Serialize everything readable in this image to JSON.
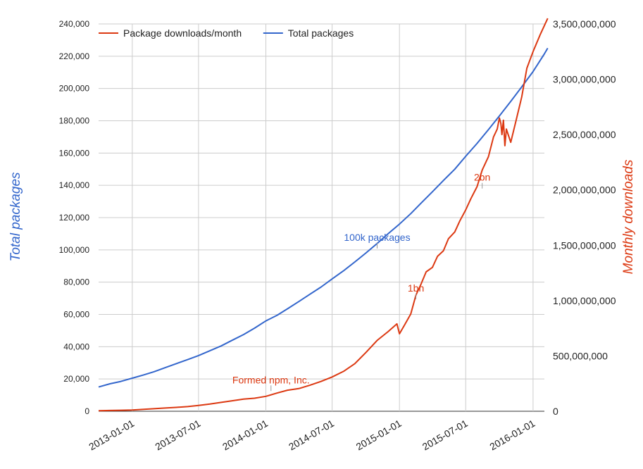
{
  "chart_data": {
    "type": "line",
    "legend": {
      "position": "top-left",
      "items": [
        {
          "label": "Package downloads/month",
          "color": "#dc3912"
        },
        {
          "label": "Total packages",
          "color": "#3366cc"
        }
      ]
    },
    "y_left": {
      "label": "Total packages",
      "color": "#3366cc",
      "range": [
        0,
        240000
      ],
      "ticks": [
        {
          "value": 0,
          "label": "0"
        },
        {
          "value": 20000,
          "label": "20,000"
        },
        {
          "value": 40000,
          "label": "40,000"
        },
        {
          "value": 60000,
          "label": "60,000"
        },
        {
          "value": 80000,
          "label": "80,000"
        },
        {
          "value": 100000,
          "label": "100,000"
        },
        {
          "value": 120000,
          "label": "120,000"
        },
        {
          "value": 140000,
          "label": "140,000"
        },
        {
          "value": 160000,
          "label": "160,000"
        },
        {
          "value": 180000,
          "label": "180,000"
        },
        {
          "value": 200000,
          "label": "200,000"
        },
        {
          "value": 220000,
          "label": "220,000"
        },
        {
          "value": 240000,
          "label": "240,000"
        }
      ]
    },
    "y_right": {
      "label": "Monthly downloads",
      "color": "#dc3912",
      "range": [
        0,
        3500000000
      ],
      "ticks": [
        {
          "value": 0,
          "label": "0"
        },
        {
          "value": 500000000,
          "label": "500,000,000"
        },
        {
          "value": 1000000000,
          "label": "1,000,000,000"
        },
        {
          "value": 1500000000,
          "label": "1,500,000,000"
        },
        {
          "value": 2000000000,
          "label": "2,000,000,000"
        },
        {
          "value": 2500000000,
          "label": "2,500,000,000"
        },
        {
          "value": 3000000000,
          "label": "3,000,000,000"
        },
        {
          "value": 3500000000,
          "label": "3,500,000,000"
        }
      ]
    },
    "x_axis": {
      "range": [
        "2012-10-01",
        "2016-02-01"
      ],
      "ticks": [
        {
          "value": "2013-01-01",
          "label": "2013-01-01"
        },
        {
          "value": "2013-07-01",
          "label": "2013-07-01"
        },
        {
          "value": "2014-01-01",
          "label": "2014-01-01"
        },
        {
          "value": "2014-07-01",
          "label": "2014-07-01"
        },
        {
          "value": "2015-01-01",
          "label": "2015-01-01"
        },
        {
          "value": "2015-07-01",
          "label": "2015-07-01"
        },
        {
          "value": "2016-01-01",
          "label": "2016-01-01"
        }
      ]
    },
    "grid": true,
    "series": [
      {
        "name": "Total packages",
        "axis": "left",
        "color": "#3366cc",
        "points": [
          [
            "2012-10-01",
            15000
          ],
          [
            "2012-11-01",
            17000
          ],
          [
            "2012-12-01",
            18500
          ],
          [
            "2013-01-01",
            20500
          ],
          [
            "2013-02-01",
            22500
          ],
          [
            "2013-03-01",
            24500
          ],
          [
            "2013-04-01",
            27000
          ],
          [
            "2013-05-01",
            29500
          ],
          [
            "2013-06-01",
            32000
          ],
          [
            "2013-07-01",
            34500
          ],
          [
            "2013-08-01",
            37500
          ],
          [
            "2013-09-01",
            40500
          ],
          [
            "2013-10-01",
            44000
          ],
          [
            "2013-11-01",
            47500
          ],
          [
            "2013-12-01",
            51500
          ],
          [
            "2014-01-01",
            56000
          ],
          [
            "2014-02-01",
            59500
          ],
          [
            "2014-03-01",
            63500
          ],
          [
            "2014-04-01",
            68000
          ],
          [
            "2014-05-01",
            72500
          ],
          [
            "2014-06-01",
            77000
          ],
          [
            "2014-07-01",
            82000
          ],
          [
            "2014-08-01",
            87000
          ],
          [
            "2014-09-01",
            92500
          ],
          [
            "2014-10-01",
            98000
          ],
          [
            "2014-11-01",
            104000
          ],
          [
            "2014-12-01",
            110000
          ],
          [
            "2015-01-01",
            116000
          ],
          [
            "2015-02-01",
            122500
          ],
          [
            "2015-03-01",
            129000
          ],
          [
            "2015-04-01",
            136000
          ],
          [
            "2015-05-01",
            143000
          ],
          [
            "2015-06-01",
            150000
          ],
          [
            "2015-07-01",
            158000
          ],
          [
            "2015-08-01",
            166000
          ],
          [
            "2015-09-01",
            174500
          ],
          [
            "2015-10-01",
            183000
          ],
          [
            "2015-11-01",
            192000
          ],
          [
            "2015-12-01",
            201000
          ],
          [
            "2016-01-01",
            210500
          ],
          [
            "2016-02-01",
            221500
          ],
          [
            "2016-02-10",
            225000
          ]
        ]
      },
      {
        "name": "Package downloads/month",
        "axis": "right",
        "color": "#dc3912",
        "points": [
          [
            "2012-10-01",
            5000000
          ],
          [
            "2012-11-01",
            7000000
          ],
          [
            "2012-12-01",
            9000000
          ],
          [
            "2013-01-01",
            11000000
          ],
          [
            "2013-02-01",
            17000000
          ],
          [
            "2013-03-01",
            23000000
          ],
          [
            "2013-04-01",
            29000000
          ],
          [
            "2013-05-01",
            35000000
          ],
          [
            "2013-06-01",
            42000000
          ],
          [
            "2013-07-01",
            52000000
          ],
          [
            "2013-08-01",
            65000000
          ],
          [
            "2013-09-01",
            80000000
          ],
          [
            "2013-10-01",
            95000000
          ],
          [
            "2013-11-01",
            110000000
          ],
          [
            "2013-12-01",
            118000000
          ],
          [
            "2014-01-01",
            135000000
          ],
          [
            "2014-02-01",
            165000000
          ],
          [
            "2014-03-01",
            190000000
          ],
          [
            "2014-04-01",
            205000000
          ],
          [
            "2014-05-01",
            235000000
          ],
          [
            "2014-06-01",
            270000000
          ],
          [
            "2014-07-01",
            310000000
          ],
          [
            "2014-08-01",
            360000000
          ],
          [
            "2014-09-01",
            430000000
          ],
          [
            "2014-10-01",
            530000000
          ],
          [
            "2014-11-01",
            640000000
          ],
          [
            "2014-12-01",
            720000000
          ],
          [
            "2014-12-25",
            790000000
          ],
          [
            "2015-01-01",
            700000000
          ],
          [
            "2015-01-15",
            780000000
          ],
          [
            "2015-02-01",
            880000000
          ],
          [
            "2015-02-15",
            1050000000
          ],
          [
            "2015-03-01",
            1150000000
          ],
          [
            "2015-03-15",
            1260000000
          ],
          [
            "2015-04-01",
            1300000000
          ],
          [
            "2015-04-15",
            1400000000
          ],
          [
            "2015-05-01",
            1450000000
          ],
          [
            "2015-05-15",
            1560000000
          ],
          [
            "2015-06-01",
            1620000000
          ],
          [
            "2015-06-15",
            1720000000
          ],
          [
            "2015-07-01",
            1820000000
          ],
          [
            "2015-07-15",
            1920000000
          ],
          [
            "2015-08-01",
            2030000000
          ],
          [
            "2015-08-15",
            2180000000
          ],
          [
            "2015-09-01",
            2300000000
          ],
          [
            "2015-09-15",
            2480000000
          ],
          [
            "2015-09-25",
            2550000000
          ],
          [
            "2015-10-01",
            2650000000
          ],
          [
            "2015-10-05",
            2600000000
          ],
          [
            "2015-10-08",
            2500000000
          ],
          [
            "2015-10-12",
            2630000000
          ],
          [
            "2015-10-16",
            2400000000
          ],
          [
            "2015-10-20",
            2550000000
          ],
          [
            "2015-11-01",
            2430000000
          ],
          [
            "2015-11-15",
            2620000000
          ],
          [
            "2015-12-01",
            2840000000
          ],
          [
            "2015-12-15",
            3100000000
          ],
          [
            "2016-01-01",
            3250000000
          ],
          [
            "2016-01-20",
            3400000000
          ],
          [
            "2016-02-10",
            3550000000
          ]
        ]
      }
    ],
    "annotations": [
      {
        "text": "Formed npm, Inc.",
        "series": "Package downloads/month",
        "x": "2014-01-15",
        "y": 170000000,
        "color": "#dc3912"
      },
      {
        "text": "100k packages",
        "series": "Total packages",
        "x": "2014-11-01",
        "y": 100000,
        "color": "#3366cc"
      },
      {
        "text": "1bn",
        "series": "Package downloads/month",
        "x": "2015-02-15",
        "y": 1000000000,
        "color": "#dc3912"
      },
      {
        "text": "2bn",
        "series": "Package downloads/month",
        "x": "2015-08-15",
        "y": 2000000000,
        "color": "#dc3912"
      }
    ]
  }
}
